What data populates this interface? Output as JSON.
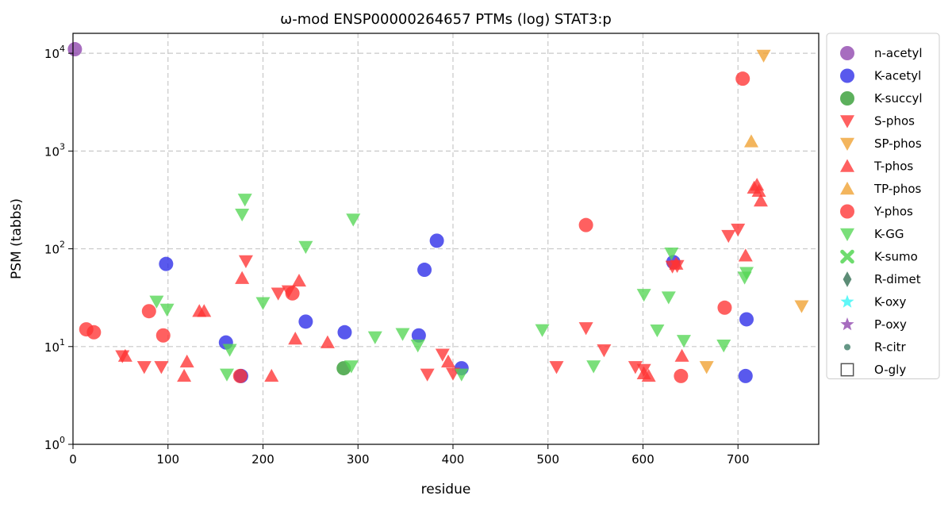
{
  "chart_data": {
    "type": "scatter",
    "title": "ω-mod ENSP00000264657 PTMs (log) STAT3:p",
    "xlabel": "residue",
    "ylabel": "PSM (tabbs)",
    "xlim": [
      0,
      785
    ],
    "ylim": [
      1,
      16000
    ],
    "yscale": "log",
    "grid": true,
    "legend_position": "outside-right",
    "xticks": [
      0,
      100,
      200,
      300,
      400,
      500,
      600,
      700
    ],
    "yticks": [
      {
        "value": 1,
        "base": "10",
        "exp": "0"
      },
      {
        "value": 10,
        "base": "10",
        "exp": "1"
      },
      {
        "value": 100,
        "base": "10",
        "exp": "2"
      },
      {
        "value": 1000,
        "base": "10",
        "exp": "3"
      },
      {
        "value": 10000,
        "base": "10",
        "exp": "4"
      }
    ],
    "series": [
      {
        "name": "n-acetyl",
        "marker": "circle",
        "color": "#8e44ad",
        "points": [
          [
            2,
            11000
          ]
        ]
      },
      {
        "name": "K-acetyl",
        "marker": "circle",
        "color": "#2a2ae8",
        "points": [
          [
            98,
            70
          ],
          [
            161,
            11
          ],
          [
            177,
            5
          ],
          [
            245,
            18
          ],
          [
            286,
            14
          ],
          [
            364,
            13
          ],
          [
            370,
            61
          ],
          [
            383,
            121
          ],
          [
            409,
            6
          ],
          [
            632,
            73
          ],
          [
            709,
            19
          ],
          [
            708,
            5
          ]
        ]
      },
      {
        "name": "K-succyl",
        "marker": "circle",
        "color": "#2e9a2e",
        "points": [
          [
            285,
            6
          ]
        ]
      },
      {
        "name": "S-phos",
        "marker": "triangle-down",
        "color": "#ff3333",
        "points": [
          [
            52,
            8
          ],
          [
            75,
            6.2
          ],
          [
            93,
            6.2
          ],
          [
            182,
            75
          ],
          [
            216,
            35
          ],
          [
            227,
            37
          ],
          [
            389,
            8.3
          ],
          [
            373,
            5.2
          ],
          [
            400,
            5.3
          ],
          [
            509,
            6.2
          ],
          [
            540,
            15.5
          ],
          [
            559,
            9.2
          ],
          [
            592,
            6.2
          ],
          [
            601,
            5.8
          ],
          [
            631,
            66
          ],
          [
            636,
            67
          ],
          [
            690,
            136
          ],
          [
            700,
            158
          ]
        ]
      },
      {
        "name": "SP-phos",
        "marker": "triangle-down",
        "color": "#f0a030",
        "points": [
          [
            727,
            9500
          ],
          [
            667,
            6.2
          ],
          [
            767,
            26
          ]
        ]
      },
      {
        "name": "T-phos",
        "marker": "triangle-up",
        "color": "#ff3333",
        "points": [
          [
            55,
            8
          ],
          [
            117,
            5
          ],
          [
            120,
            7
          ],
          [
            133,
            23
          ],
          [
            138,
            23
          ],
          [
            178,
            50
          ],
          [
            209,
            5
          ],
          [
            234,
            12
          ],
          [
            238,
            47
          ],
          [
            268,
            11
          ],
          [
            395,
            7
          ],
          [
            601,
            5.3
          ],
          [
            606,
            5
          ],
          [
            635,
            70
          ],
          [
            641,
            8
          ],
          [
            708,
            85
          ],
          [
            717,
            420
          ],
          [
            720,
            450
          ],
          [
            722,
            390
          ],
          [
            724,
            310
          ]
        ]
      },
      {
        "name": "TP-phos",
        "marker": "triangle-up",
        "color": "#f0a030",
        "points": [
          [
            714,
            1250
          ]
        ]
      },
      {
        "name": "Y-phos",
        "marker": "circle",
        "color": "#ff3333",
        "points": [
          [
            14,
            15
          ],
          [
            22,
            14
          ],
          [
            80,
            23
          ],
          [
            95,
            13
          ],
          [
            176,
            5
          ],
          [
            231,
            35
          ],
          [
            540,
            175
          ],
          [
            640,
            5
          ],
          [
            686,
            25
          ],
          [
            705,
            5500
          ]
        ]
      },
      {
        "name": "K-GG",
        "marker": "triangle-down",
        "color": "#55d655",
        "points": [
          [
            88,
            29
          ],
          [
            99,
            24
          ],
          [
            162,
            5.2
          ],
          [
            165,
            9.3
          ],
          [
            178,
            225
          ],
          [
            181,
            320
          ],
          [
            200,
            28
          ],
          [
            245,
            105
          ],
          [
            293,
            6.3
          ],
          [
            295,
            200
          ],
          [
            318,
            12.5
          ],
          [
            347,
            13.5
          ],
          [
            363,
            10.3
          ],
          [
            409,
            5.2
          ],
          [
            494,
            14.8
          ],
          [
            548,
            6.3
          ],
          [
            601,
            34
          ],
          [
            615,
            14.7
          ],
          [
            627,
            32
          ],
          [
            630,
            90
          ],
          [
            643,
            11.5
          ],
          [
            685,
            10.3
          ],
          [
            707,
            51
          ],
          [
            709,
            57
          ]
        ]
      },
      {
        "name": "K-sumo",
        "marker": "x",
        "color": "#55d655",
        "points": []
      },
      {
        "name": "R-dimet",
        "marker": "diamond",
        "color": "#2e6b4f",
        "points": []
      },
      {
        "name": "K-oxy",
        "marker": "star",
        "color": "#33f5f5",
        "points": []
      },
      {
        "name": "P-oxy",
        "marker": "star",
        "color": "#8e44ad",
        "points": []
      },
      {
        "name": "R-citr",
        "marker": "small-circle",
        "color": "#3a7a64",
        "points": []
      },
      {
        "name": "O-gly",
        "marker": "square-open",
        "color": "#555555",
        "points": []
      }
    ]
  }
}
